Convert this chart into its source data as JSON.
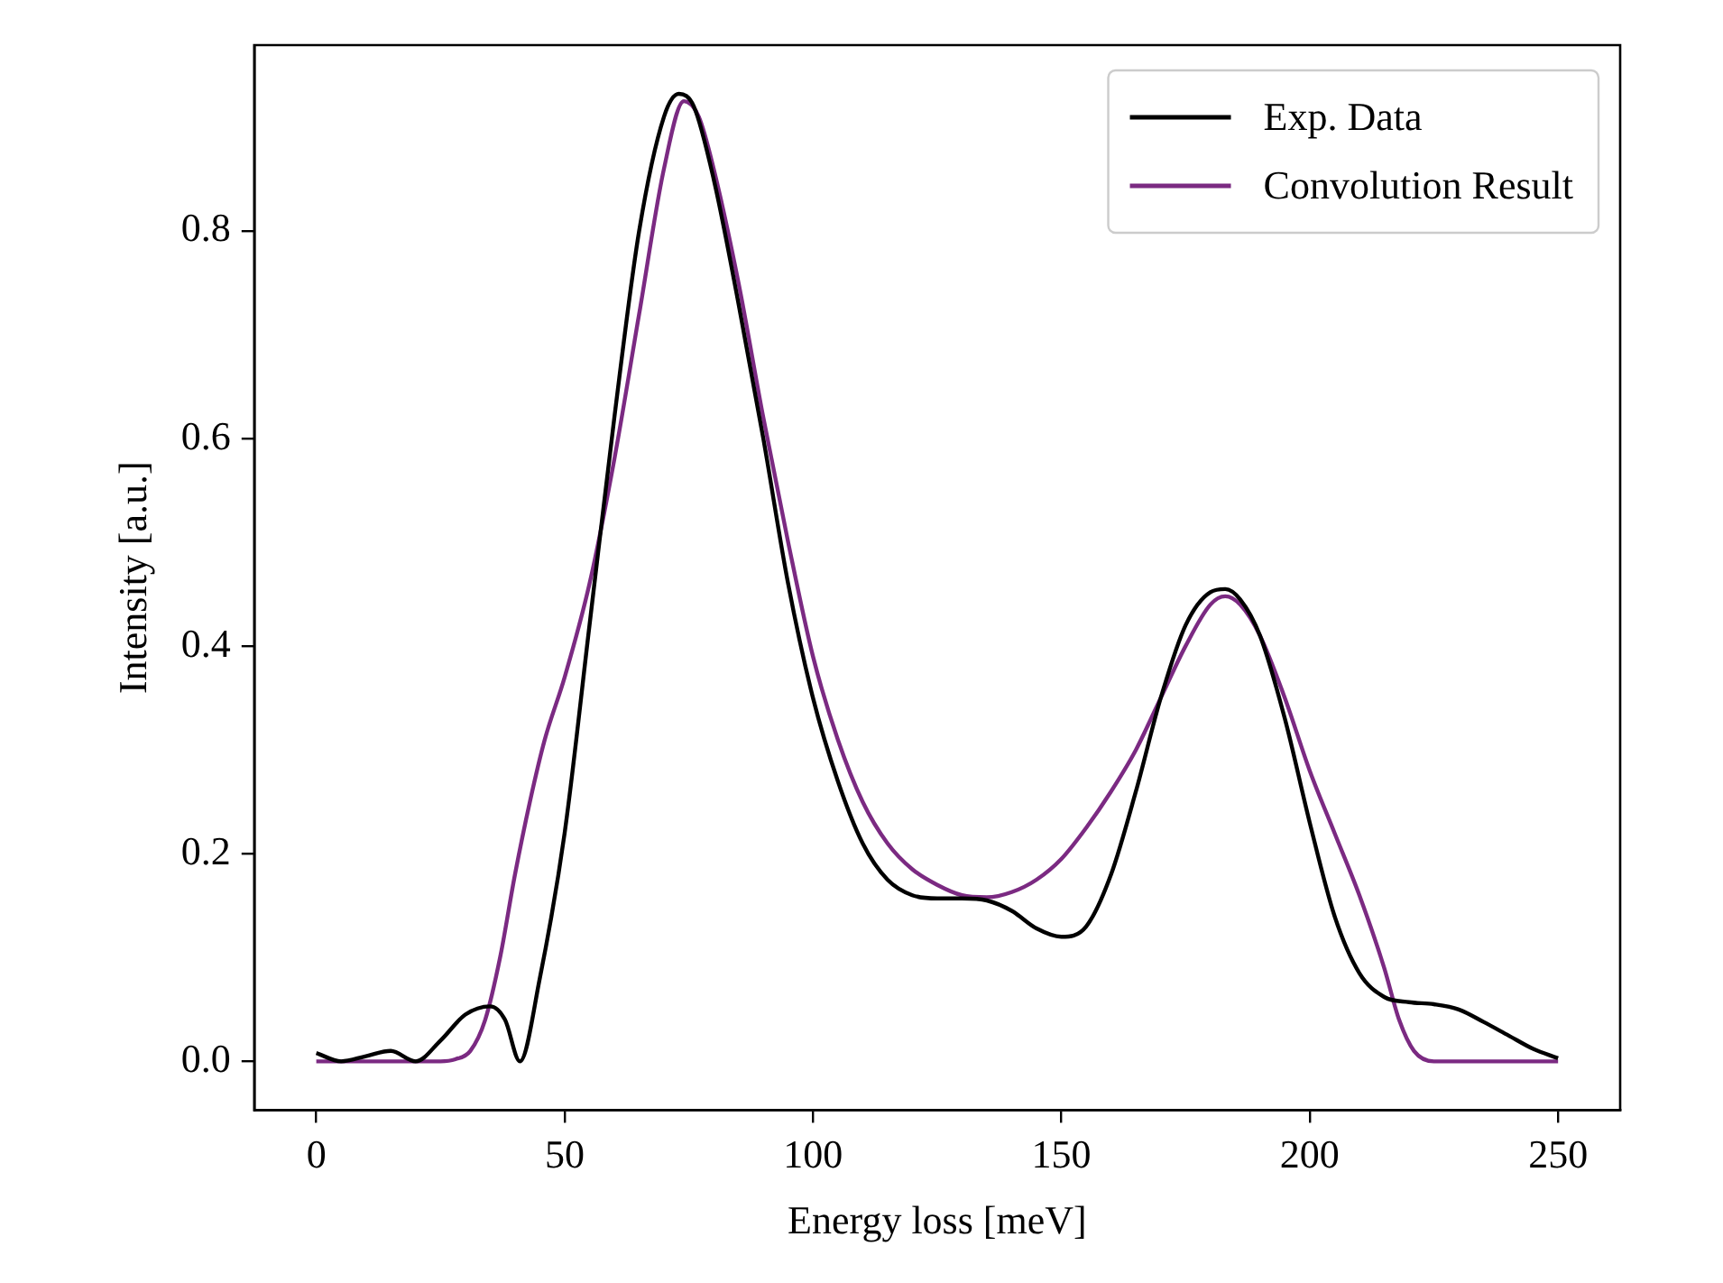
{
  "chart_data": {
    "type": "line",
    "xlabel": "Energy loss [meV]",
    "ylabel": "Intensity [a.u.]",
    "xlim": [
      -12.5,
      262.5
    ],
    "xticks": [
      0,
      50,
      100,
      150,
      200,
      250
    ],
    "ylim": [
      -0.047,
      0.979
    ],
    "yticks": [
      {
        "value": 0,
        "label": "0.0"
      },
      {
        "value": 0.2,
        "label": "0.2"
      },
      {
        "value": 0.4,
        "label": "0.4"
      },
      {
        "value": 0.6,
        "label": "0.6"
      },
      {
        "value": 0.8,
        "label": "0.8"
      }
    ],
    "grid": false,
    "legend": "top right",
    "marker": "none",
    "line_style": "solid",
    "series": [
      {
        "name": "Exp. Data",
        "color": "#000000",
        "x": [
          0,
          5,
          10,
          15,
          20,
          25,
          30,
          35,
          38,
          41,
          45,
          50,
          55,
          60,
          65,
          70,
          73,
          76,
          80,
          85,
          90,
          95,
          100,
          105,
          110,
          115,
          120,
          125,
          130,
          135,
          140,
          145,
          150,
          155,
          160,
          165,
          170,
          175,
          180,
          183,
          186,
          190,
          195,
          200,
          205,
          210,
          215,
          220,
          225,
          230,
          235,
          240,
          245,
          250
        ],
        "values": [
          0.008,
          0.0,
          0.005,
          0.01,
          0.0,
          0.02,
          0.045,
          0.053,
          0.04,
          0.0,
          0.08,
          0.22,
          0.42,
          0.62,
          0.8,
          0.91,
          0.932,
          0.92,
          0.85,
          0.73,
          0.6,
          0.46,
          0.35,
          0.27,
          0.21,
          0.175,
          0.16,
          0.157,
          0.157,
          0.155,
          0.145,
          0.128,
          0.12,
          0.13,
          0.18,
          0.26,
          0.35,
          0.42,
          0.452,
          0.455,
          0.445,
          0.41,
          0.33,
          0.23,
          0.14,
          0.085,
          0.062,
          0.057,
          0.055,
          0.05,
          0.038,
          0.025,
          0.012,
          0.003
        ]
      },
      {
        "name": "Convolution Result",
        "color": "#7b2a82",
        "x": [
          0,
          10,
          20,
          25,
          28,
          31,
          34,
          37,
          40,
          43,
          46,
          50,
          55,
          60,
          65,
          70,
          74,
          77,
          80,
          85,
          90,
          95,
          100,
          105,
          110,
          115,
          120,
          125,
          130,
          135,
          140,
          145,
          150,
          155,
          160,
          165,
          170,
          175,
          180,
          183,
          186,
          190,
          195,
          200,
          205,
          210,
          215,
          218,
          221,
          225,
          235,
          250
        ],
        "values": [
          0,
          0,
          0,
          0,
          0.002,
          0.01,
          0.04,
          0.1,
          0.18,
          0.25,
          0.31,
          0.37,
          0.46,
          0.58,
          0.72,
          0.86,
          0.925,
          0.91,
          0.86,
          0.75,
          0.62,
          0.5,
          0.39,
          0.31,
          0.25,
          0.21,
          0.185,
          0.17,
          0.16,
          0.158,
          0.163,
          0.175,
          0.195,
          0.225,
          0.26,
          0.3,
          0.35,
          0.4,
          0.44,
          0.448,
          0.44,
          0.41,
          0.35,
          0.28,
          0.22,
          0.16,
          0.09,
          0.04,
          0.01,
          0,
          0,
          0
        ]
      }
    ]
  }
}
